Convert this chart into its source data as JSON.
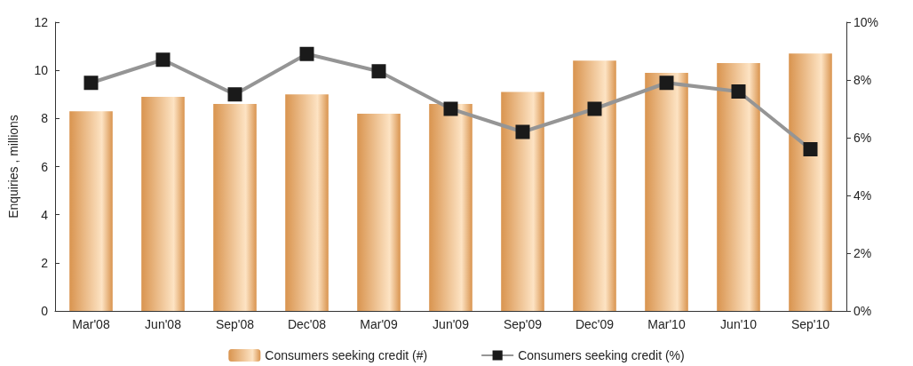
{
  "chart_data": {
    "type": "bar",
    "ylabel": "Enquiries , millions",
    "categories": [
      "Mar'08",
      "Jun'08",
      "Sep'08",
      "Dec'08",
      "Mar'09",
      "Jun'09",
      "Sep'09",
      "Dec'09",
      "Mar'10",
      "Jun'10",
      "Sep'10"
    ],
    "series": [
      {
        "name": "Consumers seeking credit (#)",
        "color": "#d9944f",
        "values": [
          8.3,
          8.9,
          8.6,
          9.0,
          8.2,
          8.6,
          9.1,
          10.4,
          9.9,
          10.3,
          10.7
        ]
      },
      {
        "name": "Consumers seeking credit (%)",
        "type": "line",
        "axis": "y2",
        "color": "#959595",
        "marker": "square",
        "values": [
          7.9,
          8.7,
          7.5,
          8.9,
          8.3,
          7.0,
          6.2,
          7.0,
          7.9,
          7.6,
          5.6
        ]
      }
    ],
    "ylim": [
      0,
      12
    ],
    "yticks": [
      0,
      2,
      4,
      6,
      8,
      10,
      12
    ],
    "y2lim": [
      0,
      10
    ],
    "y2ticks": [
      {
        "value": 0,
        "label": "0%"
      },
      {
        "value": 2,
        "label": "2%"
      },
      {
        "value": 4,
        "label": "4%"
      },
      {
        "value": 6,
        "label": "6%"
      },
      {
        "value": 8,
        "label": "8%"
      },
      {
        "value": 10,
        "label": "10%"
      }
    ],
    "grid": false,
    "legend": "bottom"
  }
}
